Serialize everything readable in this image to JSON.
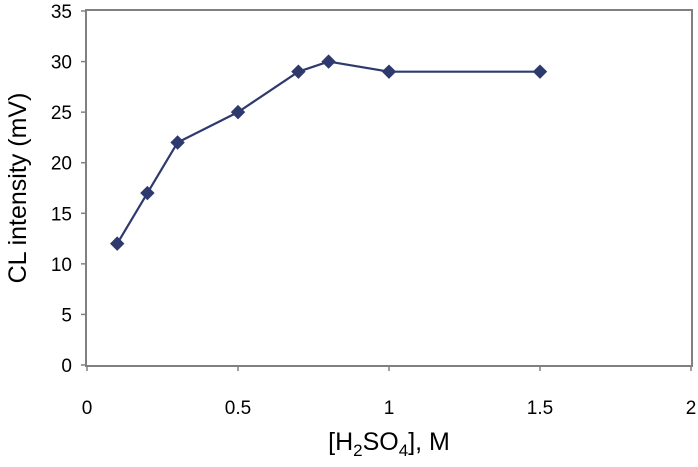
{
  "chart_data": {
    "type": "line",
    "title": "",
    "xlabel": {
      "prefix": "[H",
      "sub1": "2",
      "mid": "SO",
      "sub2": "4",
      "suffix": "], M"
    },
    "ylabel": "CL intensity (mV)",
    "xlim": [
      0,
      2
    ],
    "ylim": [
      0,
      35
    ],
    "xticks": [
      0,
      0.5,
      1,
      1.5,
      2
    ],
    "yticks": [
      0,
      5,
      10,
      15,
      20,
      25,
      30,
      35
    ],
    "series": [
      {
        "x": [
          0.1,
          0.2,
          0.3,
          0.5,
          0.7,
          0.8,
          1.0,
          1.5
        ],
        "y": [
          12,
          17,
          22,
          25,
          29,
          30,
          29,
          29
        ]
      }
    ],
    "marker": "diamond",
    "color": "#2E3A6E",
    "grid": false,
    "legend": "none"
  }
}
